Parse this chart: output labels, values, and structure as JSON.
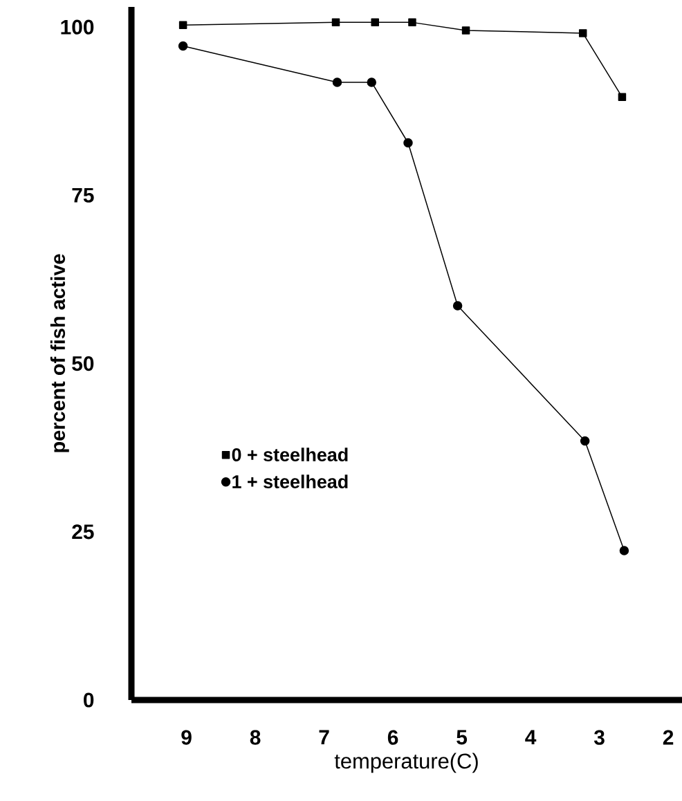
{
  "chart_data": {
    "type": "line",
    "xlabel": "temperature(C)",
    "ylabel": "percent of fish active",
    "xlim": [
      9.8,
      1.8
    ],
    "xticks": [
      9,
      8,
      7,
      6,
      5,
      4,
      3,
      2
    ],
    "ylim": [
      0,
      103
    ],
    "yticks": [
      0,
      25,
      50,
      75,
      100
    ],
    "grid": false,
    "legend": "bottom left",
    "series": [
      {
        "name": "0 + steelhead",
        "color": "#000000",
        "marker": "square",
        "x": [
          9.05,
          6.83,
          6.26,
          5.72,
          4.94,
          3.24,
          2.67
        ],
        "values": [
          100.3,
          100.7,
          100.7,
          100.7,
          99.5,
          99.1,
          89.6
        ]
      },
      {
        "name": "1 + steelhead",
        "color": "#000000",
        "marker": "circle",
        "x": [
          9.05,
          6.81,
          6.31,
          5.78,
          5.06,
          3.21,
          2.64
        ],
        "values": [
          97.2,
          91.8,
          91.8,
          82.8,
          58.6,
          38.5,
          22.2
        ]
      }
    ]
  }
}
